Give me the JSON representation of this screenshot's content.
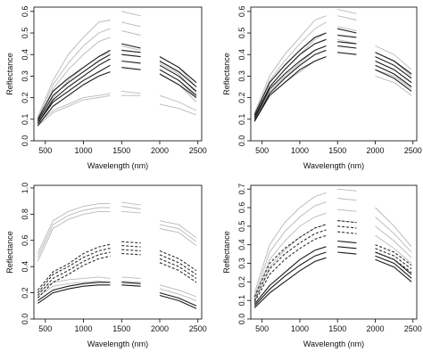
{
  "chart_data": [
    {
      "type": "line",
      "xlabel": "Wavelength (nm)",
      "ylabel": "Reflectance",
      "xlim": [
        350,
        2550
      ],
      "ylim": [
        0,
        0.62
      ],
      "xticks": [
        500,
        1000,
        1500,
        2000,
        2500
      ],
      "yticks": [
        0.0,
        0.1,
        0.2,
        0.3,
        0.4,
        0.5,
        0.6
      ],
      "ytick_labels": [
        "0.0",
        "0.1",
        "0.2",
        "0.3",
        "0.4",
        "0.5",
        "0.6"
      ],
      "series": [
        {
          "group": "gray",
          "values": [
            0.11,
            0.28,
            0.4,
            0.48,
            0.55,
            0.56,
            0.6,
            0.58,
            0.39,
            0.34,
            0.25
          ]
        },
        {
          "group": "gray",
          "values": [
            0.1,
            0.26,
            0.36,
            0.44,
            0.5,
            0.52,
            0.55,
            0.53,
            0.36,
            0.31,
            0.22
          ]
        },
        {
          "group": "gray",
          "values": [
            0.09,
            0.24,
            0.33,
            0.4,
            0.46,
            0.48,
            0.51,
            0.49,
            0.33,
            0.28,
            0.2
          ]
        },
        {
          "group": "gray",
          "values": [
            0.08,
            0.2,
            0.28,
            0.34,
            0.39,
            0.41,
            0.44,
            0.42,
            0.31,
            0.26,
            0.18
          ]
        },
        {
          "group": "gray",
          "values": [
            0.08,
            0.14,
            0.17,
            0.2,
            0.21,
            0.22,
            0.23,
            0.22,
            0.21,
            0.18,
            0.14
          ]
        },
        {
          "group": "gray",
          "values": [
            0.07,
            0.13,
            0.16,
            0.19,
            0.2,
            0.21,
            0.21,
            0.21,
            0.17,
            0.15,
            0.12
          ]
        },
        {
          "group": "black",
          "values": [
            0.1,
            0.23,
            0.29,
            0.34,
            0.39,
            0.42,
            0.45,
            0.43,
            0.39,
            0.34,
            0.27
          ]
        },
        {
          "group": "black",
          "values": [
            0.09,
            0.21,
            0.27,
            0.32,
            0.37,
            0.4,
            0.42,
            0.41,
            0.37,
            0.32,
            0.25
          ]
        },
        {
          "group": "black",
          "values": [
            0.08,
            0.19,
            0.25,
            0.3,
            0.35,
            0.38,
            0.4,
            0.39,
            0.35,
            0.3,
            0.23
          ]
        },
        {
          "group": "black",
          "values": [
            0.08,
            0.18,
            0.23,
            0.28,
            0.32,
            0.35,
            0.37,
            0.36,
            0.33,
            0.28,
            0.21
          ]
        },
        {
          "group": "black",
          "values": [
            0.07,
            0.16,
            0.21,
            0.26,
            0.3,
            0.32,
            0.34,
            0.33,
            0.31,
            0.26,
            0.2
          ]
        }
      ]
    },
    {
      "type": "line",
      "xlabel": "Wavelength (nm)",
      "ylabel": "Reflectance",
      "xlim": [
        350,
        2550
      ],
      "ylim": [
        0,
        0.62
      ],
      "xticks": [
        500,
        1000,
        1500,
        2000,
        2500
      ],
      "yticks": [
        0.0,
        0.1,
        0.2,
        0.3,
        0.4,
        0.5,
        0.6
      ],
      "ytick_labels": [
        "0.0",
        "0.1",
        "0.2",
        "0.3",
        "0.4",
        "0.5",
        "0.6"
      ],
      "series": [
        {
          "group": "gray",
          "values": [
            0.13,
            0.3,
            0.4,
            0.48,
            0.56,
            0.58,
            0.61,
            0.59,
            0.44,
            0.4,
            0.33
          ]
        },
        {
          "group": "gray",
          "values": [
            0.12,
            0.28,
            0.37,
            0.45,
            0.52,
            0.55,
            0.58,
            0.56,
            0.41,
            0.37,
            0.3
          ]
        },
        {
          "group": "gray",
          "values": [
            0.11,
            0.25,
            0.33,
            0.4,
            0.47,
            0.5,
            0.53,
            0.51,
            0.37,
            0.33,
            0.27
          ]
        },
        {
          "group": "gray",
          "values": [
            0.1,
            0.23,
            0.3,
            0.36,
            0.42,
            0.44,
            0.47,
            0.45,
            0.33,
            0.3,
            0.24
          ]
        },
        {
          "group": "gray",
          "values": [
            0.09,
            0.21,
            0.27,
            0.32,
            0.37,
            0.39,
            0.41,
            0.4,
            0.3,
            0.27,
            0.21
          ]
        },
        {
          "group": "black",
          "values": [
            0.12,
            0.27,
            0.35,
            0.42,
            0.48,
            0.5,
            0.52,
            0.5,
            0.41,
            0.37,
            0.31
          ]
        },
        {
          "group": "black",
          "values": [
            0.11,
            0.25,
            0.33,
            0.4,
            0.45,
            0.47,
            0.49,
            0.48,
            0.39,
            0.35,
            0.29
          ]
        },
        {
          "group": "black",
          "values": [
            0.1,
            0.24,
            0.31,
            0.37,
            0.42,
            0.44,
            0.46,
            0.45,
            0.37,
            0.33,
            0.27
          ]
        },
        {
          "group": "black",
          "values": [
            0.09,
            0.22,
            0.29,
            0.35,
            0.4,
            0.42,
            0.44,
            0.43,
            0.35,
            0.31,
            0.25
          ]
        },
        {
          "group": "black",
          "values": [
            0.09,
            0.21,
            0.27,
            0.33,
            0.37,
            0.39,
            0.41,
            0.4,
            0.33,
            0.29,
            0.23
          ]
        }
      ]
    },
    {
      "type": "line",
      "xlabel": "Wavelength (nm)",
      "ylabel": "Reflectance",
      "xlim": [
        350,
        2550
      ],
      "ylim": [
        0,
        1.02
      ],
      "xticks": [
        500,
        1000,
        1500,
        2000,
        2500
      ],
      "yticks": [
        0.0,
        0.2,
        0.4,
        0.6,
        0.8,
        1.0
      ],
      "ytick_labels": [
        "0.0",
        "0.2",
        "0.4",
        "0.6",
        "0.8",
        "1.0"
      ],
      "series": [
        {
          "group": "gray",
          "values": [
            0.5,
            0.75,
            0.82,
            0.86,
            0.88,
            0.88,
            0.89,
            0.87,
            0.75,
            0.72,
            0.62
          ]
        },
        {
          "group": "gray",
          "values": [
            0.47,
            0.72,
            0.79,
            0.83,
            0.85,
            0.85,
            0.86,
            0.84,
            0.72,
            0.69,
            0.59
          ]
        },
        {
          "group": "gray",
          "values": [
            0.44,
            0.69,
            0.76,
            0.8,
            0.82,
            0.82,
            0.82,
            0.81,
            0.69,
            0.66,
            0.56
          ]
        },
        {
          "group": "gray",
          "values": [
            0.2,
            0.28,
            0.3,
            0.31,
            0.32,
            0.31,
            0.32,
            0.31,
            0.26,
            0.22,
            0.17
          ]
        },
        {
          "group": "gray",
          "values": [
            0.17,
            0.25,
            0.27,
            0.28,
            0.29,
            0.28,
            0.29,
            0.28,
            0.23,
            0.19,
            0.14
          ]
        },
        {
          "group": "dashed",
          "values": [
            0.22,
            0.36,
            0.42,
            0.5,
            0.55,
            0.57,
            0.59,
            0.58,
            0.52,
            0.46,
            0.37
          ]
        },
        {
          "group": "dashed",
          "values": [
            0.2,
            0.34,
            0.4,
            0.47,
            0.52,
            0.54,
            0.56,
            0.55,
            0.49,
            0.43,
            0.34
          ]
        },
        {
          "group": "dashed",
          "values": [
            0.18,
            0.31,
            0.37,
            0.44,
            0.49,
            0.51,
            0.53,
            0.52,
            0.46,
            0.4,
            0.31
          ]
        },
        {
          "group": "dashed",
          "values": [
            0.16,
            0.28,
            0.34,
            0.41,
            0.46,
            0.48,
            0.5,
            0.49,
            0.43,
            0.37,
            0.28
          ]
        },
        {
          "group": "black",
          "values": [
            0.14,
            0.22,
            0.25,
            0.27,
            0.28,
            0.28,
            0.28,
            0.27,
            0.2,
            0.16,
            0.1
          ]
        },
        {
          "group": "black",
          "values": [
            0.12,
            0.2,
            0.23,
            0.25,
            0.26,
            0.26,
            0.26,
            0.25,
            0.18,
            0.14,
            0.08
          ]
        }
      ]
    },
    {
      "type": "line",
      "xlabel": "Wavelength (nm)",
      "ylabel": "Reflectance",
      "xlim": [
        350,
        2550
      ],
      "ylim": [
        0,
        0.72
      ],
      "xticks": [
        500,
        1000,
        1500,
        2000,
        2500
      ],
      "xtick_labels": [
        "500",
        "1000",
        "1500",
        "2000",
        "2500"
      ],
      "yticks": [
        0.0,
        0.1,
        0.2,
        0.3,
        0.4,
        0.5,
        0.6,
        0.7
      ],
      "ytick_labels": [
        "0.0",
        "0.1",
        "0.2",
        "0.3",
        "0.4",
        "0.5",
        "0.6",
        "0.7"
      ],
      "series": [
        {
          "group": "gray",
          "values": [
            0.14,
            0.4,
            0.52,
            0.6,
            0.66,
            0.68,
            0.7,
            0.69,
            0.6,
            0.5,
            0.39
          ]
        },
        {
          "group": "gray",
          "values": [
            0.12,
            0.36,
            0.47,
            0.55,
            0.61,
            0.63,
            0.65,
            0.64,
            0.55,
            0.46,
            0.36
          ]
        },
        {
          "group": "gray",
          "values": [
            0.11,
            0.32,
            0.42,
            0.5,
            0.55,
            0.57,
            0.59,
            0.58,
            0.5,
            0.42,
            0.33
          ]
        },
        {
          "group": "gray",
          "values": [
            0.1,
            0.28,
            0.37,
            0.44,
            0.49,
            0.51,
            0.53,
            0.52,
            0.45,
            0.38,
            0.3
          ]
        },
        {
          "group": "dashed",
          "values": [
            0.12,
            0.3,
            0.38,
            0.44,
            0.49,
            0.51,
            0.53,
            0.52,
            0.4,
            0.36,
            0.29
          ]
        },
        {
          "group": "dashed",
          "values": [
            0.1,
            0.27,
            0.35,
            0.41,
            0.46,
            0.48,
            0.5,
            0.49,
            0.38,
            0.34,
            0.27
          ]
        },
        {
          "group": "dashed",
          "values": [
            0.09,
            0.24,
            0.32,
            0.38,
            0.43,
            0.45,
            0.47,
            0.46,
            0.36,
            0.32,
            0.25
          ]
        },
        {
          "group": "black",
          "values": [
            0.08,
            0.18,
            0.25,
            0.32,
            0.37,
            0.39,
            0.42,
            0.41,
            0.36,
            0.32,
            0.24
          ]
        },
        {
          "group": "black",
          "values": [
            0.07,
            0.16,
            0.23,
            0.29,
            0.34,
            0.36,
            0.39,
            0.38,
            0.34,
            0.3,
            0.22
          ]
        },
        {
          "group": "black",
          "values": [
            0.06,
            0.14,
            0.2,
            0.26,
            0.31,
            0.33,
            0.36,
            0.35,
            0.32,
            0.28,
            0.2
          ]
        }
      ]
    }
  ],
  "shared_x": [
    400,
    600,
    800,
    1000,
    1200,
    1350,
    1500,
    1750,
    2000,
    2250,
    2480
  ],
  "colors": {
    "gray": "#b8b8b8",
    "black": "#1a1a1a",
    "dashed": "#2a2a2a",
    "axis": "#000000"
  }
}
